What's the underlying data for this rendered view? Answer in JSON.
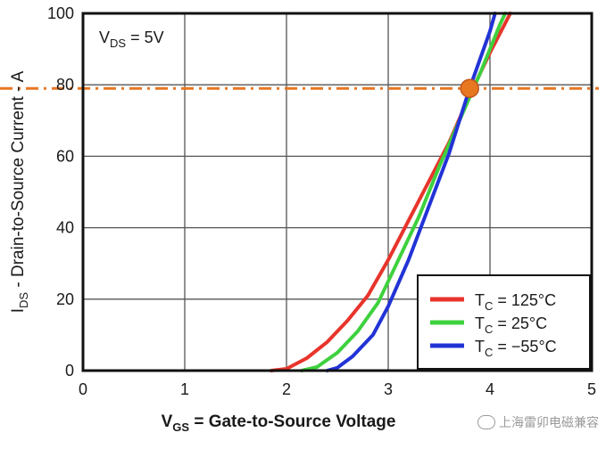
{
  "chart_data": {
    "type": "line",
    "xlabel": {
      "main": "V",
      "sub": "GS",
      "rest": " = Gate-to-Source Voltage"
    },
    "ylabel": {
      "main": "I",
      "sub": "DS",
      "rest": " - Drain-to-Source Current - A"
    },
    "annotation": {
      "main": "V",
      "sub": "DS",
      "rest": " = 5V"
    },
    "xlim": [
      0,
      5
    ],
    "ylim": [
      0,
      100
    ],
    "xticks": [
      "0",
      "1",
      "2",
      "3",
      "4",
      "5"
    ],
    "yticks": [
      "0",
      "20",
      "40",
      "60",
      "80",
      "100"
    ],
    "grid": true,
    "legend_position": "bottom-right",
    "reference_line": {
      "y": 79,
      "color": "#e87722"
    },
    "marker": {
      "x": 3.8,
      "y": 79,
      "color": "#e87722"
    },
    "series": [
      {
        "name": {
          "main": "T",
          "sub": "C",
          "rest": " = 125°C"
        },
        "color": "#e8342b",
        "points": [
          [
            1.85,
            0
          ],
          [
            2.0,
            0.5
          ],
          [
            2.2,
            3.5
          ],
          [
            2.4,
            8
          ],
          [
            2.6,
            14
          ],
          [
            2.8,
            21
          ],
          [
            3.0,
            31
          ],
          [
            3.2,
            42
          ],
          [
            3.4,
            53
          ],
          [
            3.6,
            64
          ],
          [
            3.8,
            77
          ],
          [
            4.0,
            89
          ],
          [
            4.2,
            100
          ]
        ]
      },
      {
        "name": {
          "main": "T",
          "sub": "C",
          "rest": " = 25°C"
        },
        "color": "#3ed13e",
        "points": [
          [
            2.15,
            0
          ],
          [
            2.3,
            1
          ],
          [
            2.5,
            5
          ],
          [
            2.7,
            11
          ],
          [
            2.9,
            19
          ],
          [
            3.1,
            31
          ],
          [
            3.3,
            43
          ],
          [
            3.5,
            57
          ],
          [
            3.7,
            70
          ],
          [
            3.9,
            83
          ],
          [
            4.1,
            97
          ],
          [
            4.15,
            100
          ]
        ]
      },
      {
        "name": {
          "main": "T",
          "sub": "C",
          "rest": " = −55°C"
        },
        "color": "#2233d6",
        "points": [
          [
            2.4,
            0
          ],
          [
            2.5,
            0.8
          ],
          [
            2.65,
            4
          ],
          [
            2.85,
            10
          ],
          [
            3.0,
            18
          ],
          [
            3.2,
            31
          ],
          [
            3.4,
            46
          ],
          [
            3.6,
            61
          ],
          [
            3.8,
            79
          ],
          [
            4.0,
            95
          ],
          [
            4.05,
            100
          ]
        ]
      }
    ]
  },
  "watermark": "上海雷卯电磁兼容"
}
